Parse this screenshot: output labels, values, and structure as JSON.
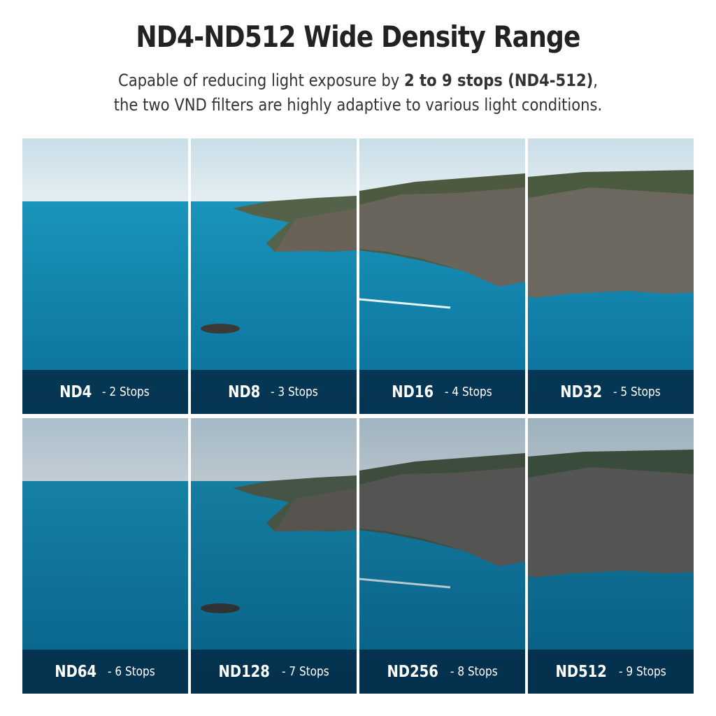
{
  "header": {
    "title": "ND4-ND512 Wide Density Range",
    "subtitle_line1_pre": "Capable of reducing light exposure by ",
    "subtitle_line1_bold": "2 to 9 stops (ND4-512)",
    "subtitle_line1_post": ",",
    "subtitle_line2": "the two VND filters are highly adaptive to various light conditions."
  },
  "panels": [
    {
      "nd": "ND4",
      "stops": "- 2 Stops",
      "darkness": 0.0
    },
    {
      "nd": "ND8",
      "stops": "- 3 Stops",
      "darkness": 0.0
    },
    {
      "nd": "ND16",
      "stops": "- 4 Stops",
      "darkness": 0.0
    },
    {
      "nd": "ND32",
      "stops": "- 5 Stops",
      "darkness": 0.0
    },
    {
      "nd": "ND64",
      "stops": "- 6 Stops",
      "darkness": 0.15
    },
    {
      "nd": "ND128",
      "stops": "- 7 Stops",
      "darkness": 0.18
    },
    {
      "nd": "ND256",
      "stops": "- 8 Stops",
      "darkness": 0.2
    },
    {
      "nd": "ND512",
      "stops": "- 9 Stops",
      "darkness": 0.22
    }
  ]
}
